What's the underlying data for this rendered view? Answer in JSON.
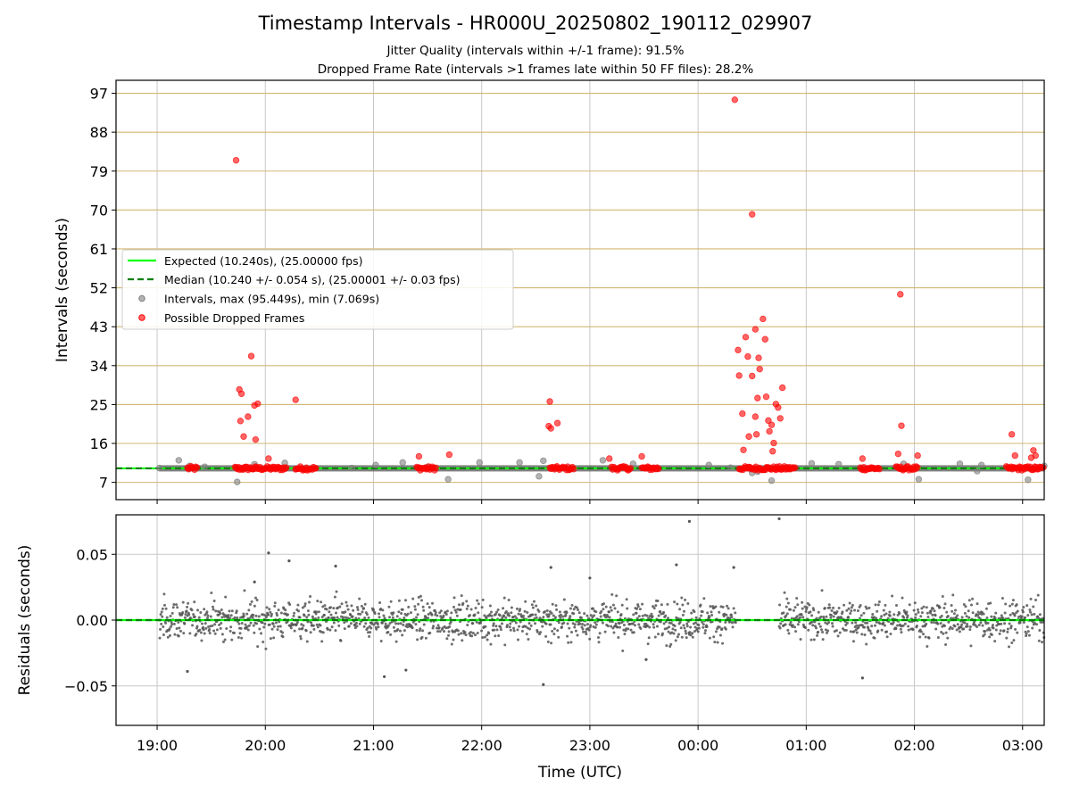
{
  "title": "Timestamp Intervals - HR000U_20250802_190112_029907",
  "subtitle1": "Jitter Quality (intervals within +/-1 frame): 91.5%",
  "subtitle2": "Dropped Frame Rate (intervals >1 frames late within 50 FF files): 28.2%",
  "colors": {
    "expected": "#00ff00",
    "median": "#007f00",
    "intervals": "#808080",
    "dropped": "#ff0000",
    "hgrid_top": "#d2b771",
    "grid": "#c8c8c8",
    "band": "#555555"
  },
  "chart_data": [
    {
      "type": "scatter",
      "ylabel": "Intervals (seconds)",
      "yticks": [
        "7",
        "16",
        "25",
        "34",
        "43",
        "52",
        "61",
        "70",
        "79",
        "88",
        "97"
      ],
      "ylim": [
        3,
        100
      ],
      "xlim_hours": [
        18.62,
        27.2
      ],
      "grid": true,
      "legend_placement": "center-left",
      "legend": [
        "Expected (10.240s), (25.00000 fps)",
        "Median (10.240 +/- 0.054 s), (25.00001 +/- 0.03 fps)",
        "Intervals, max (95.449s), min (7.069s)",
        "Possible Dropped Frames"
      ],
      "expected": 10.24,
      "median": 10.24,
      "series": [
        {
          "x_hours": [
            19.02,
            19.2,
            19.3,
            19.44,
            19.74,
            19.9,
            20.18,
            20.8,
            21.02,
            21.27,
            21.5,
            21.69,
            21.98,
            22.35,
            22.53,
            22.57,
            22.65,
            23.12,
            23.4,
            24.1,
            24.3,
            24.5,
            24.55,
            24.68,
            25.05,
            25.3,
            25.9,
            26.04,
            26.42,
            26.58,
            26.62,
            27.05,
            27.2
          ],
          "y": [
            10.3,
            12.1,
            10.8,
            10.6,
            7.1,
            11.2,
            11.5,
            10.3,
            11.0,
            11.6,
            10.6,
            7.7,
            11.6,
            11.6,
            8.4,
            12.0,
            10.3,
            12.1,
            11.3,
            11.0,
            10.4,
            9.2,
            9.5,
            7.4,
            11.4,
            11.2,
            11.3,
            7.7,
            11.3,
            9.6,
            11.0,
            7.6,
            10.8
          ]
        },
        {
          "name": "Possible Dropped Frames",
          "x_hours": [
            19.73,
            19.76,
            19.78,
            19.77,
            19.8,
            19.84,
            19.87,
            19.9,
            19.93,
            19.91,
            20.03,
            20.28,
            21.42,
            21.7,
            22.63,
            22.62,
            22.64,
            22.7,
            23.18,
            23.48,
            24.34,
            24.37,
            24.38,
            24.41,
            24.42,
            24.44,
            24.46,
            24.47,
            24.5,
            24.53,
            24.54,
            24.55,
            24.56,
            24.57,
            24.6,
            24.62,
            24.63,
            24.65,
            24.66,
            24.68,
            24.69,
            24.7,
            24.72,
            24.74,
            24.76,
            24.78,
            24.53,
            24.5,
            25.52,
            25.87,
            25.88,
            25.85,
            26.03,
            26.9,
            26.93,
            27.08,
            27.1,
            27.12
          ],
          "y": [
            81.5,
            28.5,
            27.5,
            21.2,
            17.6,
            22.2,
            36.2,
            24.8,
            25.2,
            16.9,
            12.5,
            26.1,
            13.0,
            13.4,
            25.7,
            20.0,
            19.5,
            20.7,
            12.5,
            13.0,
            95.5,
            37.6,
            31.7,
            22.9,
            14.5,
            40.6,
            36.1,
            17.6,
            31.6,
            42.4,
            18.1,
            26.5,
            35.8,
            33.2,
            44.8,
            40.1,
            26.8,
            21.3,
            18.8,
            20.3,
            14.2,
            16.1,
            25.1,
            24.3,
            21.8,
            28.9,
            22.2,
            69.0,
            12.5,
            50.5,
            20.1,
            13.6,
            13.2,
            18.1,
            13.2,
            12.7,
            14.4,
            13.2
          ]
        }
      ]
    },
    {
      "type": "scatter",
      "xlabel": "Time (UTC)",
      "ylabel": "Residuals (seconds)",
      "yticks": [
        "−0.05",
        "0.00",
        "0.05"
      ],
      "ylim": [
        -0.08,
        0.08
      ],
      "xticks": [
        "19:00",
        "20:00",
        "21:00",
        "22:00",
        "23:00",
        "00:00",
        "01:00",
        "02:00",
        "03:00"
      ],
      "grid": true,
      "outliers": {
        "x_hours": [
          19.28,
          19.9,
          20.03,
          20.22,
          20.65,
          21.1,
          21.3,
          22.57,
          22.64,
          23.0,
          23.52,
          23.8,
          23.92,
          24.33,
          24.75,
          25.52
        ],
        "y": [
          -0.039,
          0.029,
          0.051,
          0.045,
          0.041,
          -0.043,
          -0.038,
          -0.049,
          0.04,
          0.032,
          -0.03,
          0.042,
          0.075,
          0.04,
          0.077,
          -0.044
        ]
      }
    }
  ]
}
